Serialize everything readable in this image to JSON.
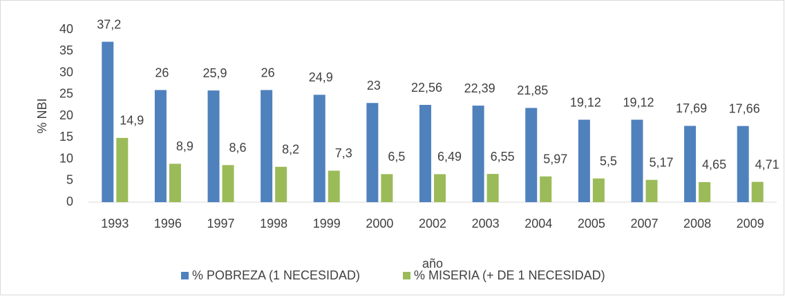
{
  "chart_data": {
    "type": "bar",
    "x_label": "año",
    "y_label": "% NBI",
    "categories": [
      "1993",
      "1996",
      "1997",
      "1998",
      "1999",
      "2000",
      "2002",
      "2003",
      "2004",
      "2005",
      "2007",
      "2008",
      "2009"
    ],
    "series": [
      {
        "name": "% POBREZA (1 NECESIDAD)",
        "color": "#4f81bd",
        "values": [
          37.2,
          26,
          25.9,
          26,
          24.9,
          23,
          22.56,
          22.39,
          21.85,
          19.12,
          19.12,
          17.69,
          17.66
        ],
        "value_labels": [
          "37,2",
          "26",
          "25,9",
          "26",
          "24,9",
          "23",
          "22,56",
          "22,39",
          "21,85",
          "19,12",
          "19,12",
          "17,69",
          "17,66"
        ]
      },
      {
        "name": "% MISERIA (+ DE 1 NECESIDAD)",
        "color": "#9bbb59",
        "values": [
          14.9,
          8.9,
          8.6,
          8.2,
          7.3,
          6.5,
          6.49,
          6.55,
          5.97,
          5.5,
          5.17,
          4.65,
          4.71
        ],
        "value_labels": [
          "14,9",
          "8,9",
          "8,6",
          "8,2",
          "7,3",
          "6,5",
          "6,49",
          "6,55",
          "5,97",
          "5,5",
          "5,17",
          "4,65",
          "4,71"
        ]
      }
    ],
    "ylim": [
      0,
      40
    ],
    "yticks": [
      0,
      5,
      10,
      15,
      20,
      25,
      30,
      35,
      40
    ],
    "grid": false,
    "legend": "bottom"
  }
}
